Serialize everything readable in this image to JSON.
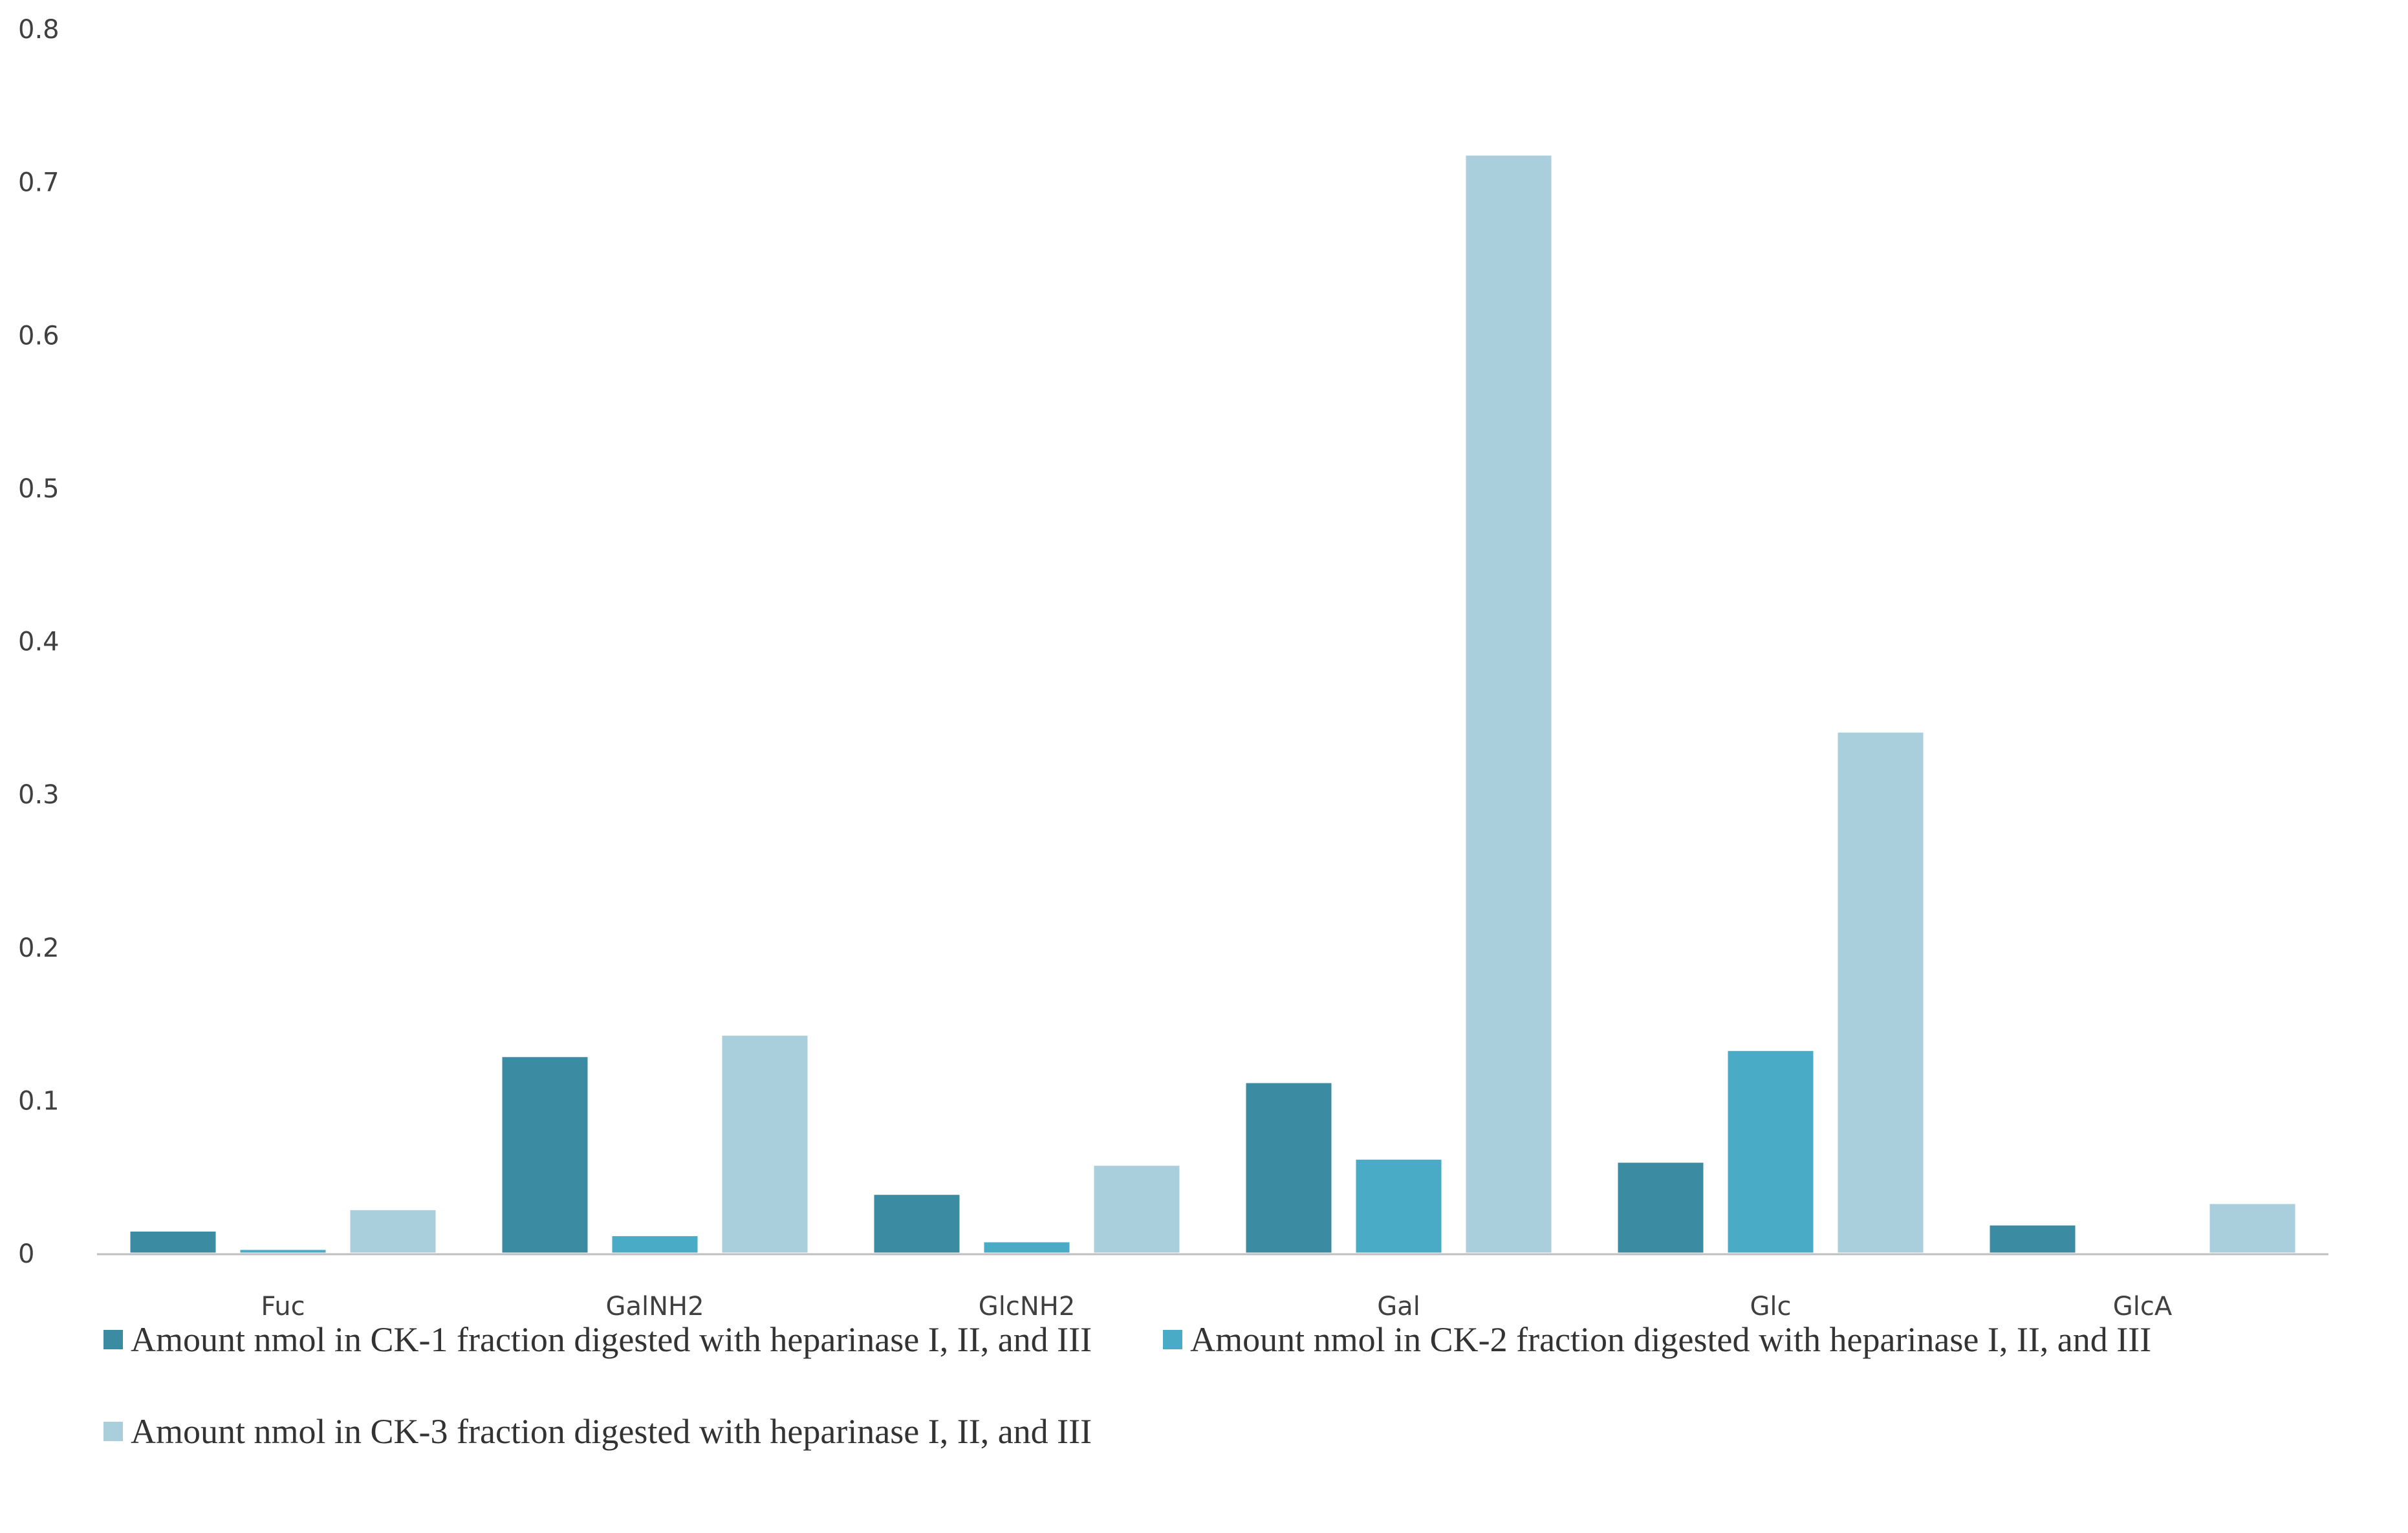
{
  "chart_data": {
    "type": "bar",
    "title": "",
    "xlabel": "",
    "ylabel": "",
    "ylim": [
      0,
      0.8
    ],
    "yticks": [
      "0",
      "0.1",
      "0.2",
      "0.3",
      "0.4",
      "0.5",
      "0.6",
      "0.7",
      "0.8"
    ],
    "grid": false,
    "legend_position": "bottom",
    "categories": [
      "Fuc",
      "GalNH2",
      "GlcNH2",
      "Gal",
      "Glc",
      "GlcA"
    ],
    "series": [
      {
        "name": "Amount nmol in CK-1 fraction digested with heparinase I, II, and III",
        "color": "#3b8ca3",
        "values": [
          0.015,
          0.129,
          0.039,
          0.112,
          0.06,
          0.019
        ]
      },
      {
        "name": "Amount nmol in CK-2 fraction digested with heparinase I, II, and III",
        "color": "#4aabc6",
        "values": [
          0.003,
          0.012,
          0.008,
          0.062,
          0.133,
          0.0
        ]
      },
      {
        "name": "Amount nmol in CK-3 fraction digested with heparinase I, II, and III",
        "color": "#a9cfdc",
        "values": [
          0.029,
          0.143,
          0.058,
          0.718,
          0.341,
          0.033
        ]
      }
    ]
  }
}
